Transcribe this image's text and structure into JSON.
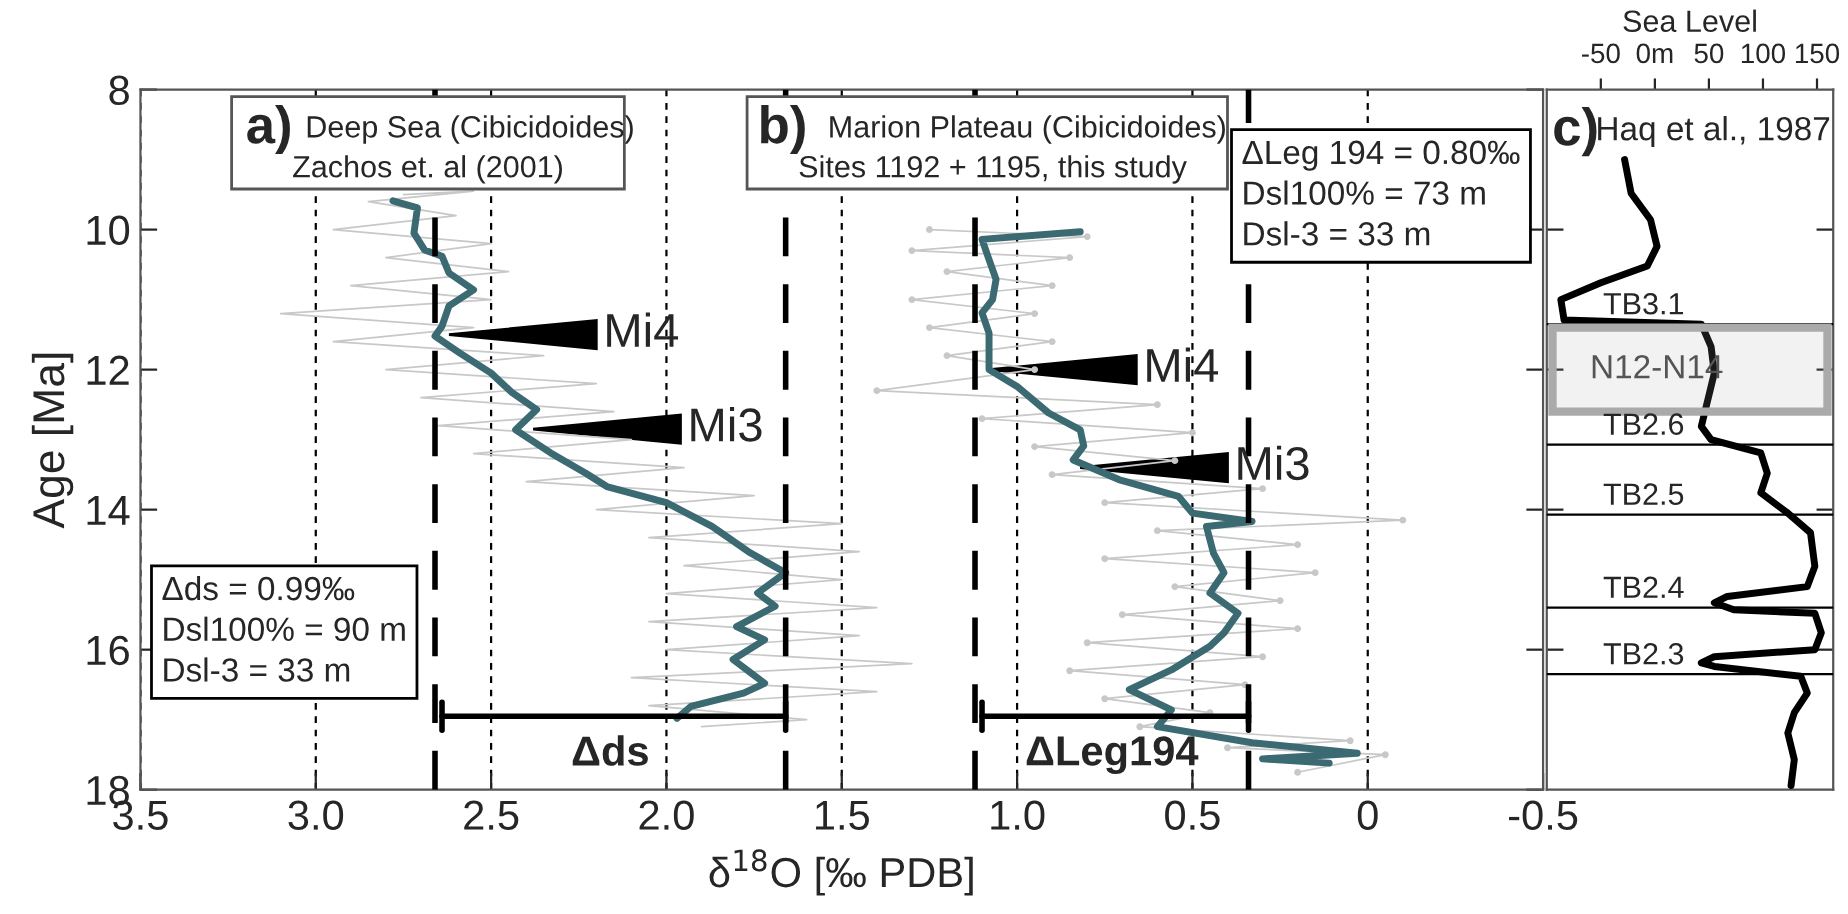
{
  "chart_data": [
    {
      "type": "line",
      "xlabel": "δ$^{18}$O [‰ PDB]",
      "ylabel": "Age [Ma]",
      "xlim": [
        3.5,
        -0.5
      ],
      "xticks": [
        3.5,
        {
          "value": 3.0,
          "label": "3.0"
        },
        2.5,
        {
          "value": 2.0,
          "label": "2.0"
        },
        1.5,
        {
          "value": 1.0,
          "label": "1.0"
        },
        0.5,
        0,
        -0.5
      ],
      "ylim": [
        18,
        8
      ],
      "yticks": [
        8,
        10,
        12,
        14,
        16,
        18
      ],
      "grid": "x",
      "series": [
        {
          "color": "#c8c8c8",
          "x": [
            2.75,
            2.55,
            2.85,
            2.6,
            2.95,
            2.5,
            2.8,
            2.45,
            2.9,
            2.5,
            3.1,
            2.55,
            2.95,
            2.35,
            2.8,
            2.2,
            2.7,
            2.15,
            2.65,
            2.1,
            2.55,
            1.95,
            2.4,
            1.75,
            2.2,
            1.5,
            2.05,
            1.45,
            1.95,
            1.5,
            2.0,
            1.4,
            2.05,
            1.45,
            2.0,
            1.3,
            2.1,
            1.4,
            2.05,
            1.6,
            1.9
          ],
          "values": [
            9.5,
            9.45,
            9.6,
            9.8,
            10.0,
            10.2,
            10.4,
            10.6,
            10.8,
            11.0,
            11.2,
            11.4,
            11.6,
            11.8,
            12.0,
            12.2,
            12.4,
            12.6,
            12.8,
            13.0,
            13.2,
            13.4,
            13.6,
            13.8,
            14.0,
            14.2,
            14.4,
            14.6,
            14.8,
            15.0,
            15.2,
            15.4,
            15.6,
            15.8,
            16.0,
            16.2,
            16.4,
            16.6,
            16.8,
            17.0,
            17.1
          ]
        },
        {
          "color": "#3b6a72",
          "x": [
            2.78,
            2.71,
            2.72,
            2.69,
            2.64,
            2.62,
            2.55,
            2.62,
            2.64,
            2.66,
            2.59,
            2.5,
            2.44,
            2.37,
            2.43,
            2.33,
            2.23,
            2.17,
            2.0,
            1.87,
            1.76,
            1.66,
            1.74,
            1.69,
            1.8,
            1.72,
            1.81,
            1.72,
            1.78,
            1.93,
            1.97
          ],
          "values": [
            9.59,
            9.69,
            10.05,
            10.29,
            10.38,
            10.62,
            10.86,
            11.09,
            11.38,
            11.52,
            11.76,
            12.05,
            12.33,
            12.57,
            12.86,
            13.19,
            13.48,
            13.67,
            13.9,
            14.24,
            14.62,
            14.9,
            15.19,
            15.38,
            15.67,
            15.86,
            16.14,
            16.48,
            16.62,
            16.81,
            16.98
          ]
        },
        {
          "color": "#c8c8c8",
          "marker": "circle",
          "x": [
            1.25,
            0.8,
            1.3,
            0.85,
            1.2,
            0.9,
            1.3,
            0.95,
            1.25,
            0.9,
            1.2,
            0.95,
            1.4,
            0.6,
            1.1,
            0.5,
            0.95,
            0.55,
            0.9,
            0.3,
            0.75,
            -0.1,
            0.6,
            0.2,
            0.75,
            0.15,
            0.55,
            0.25,
            0.7,
            0.2,
            0.8,
            0.3,
            0.85,
            0.35,
            0.75,
            0.45,
            0.65,
            0.05,
            0.4,
            -0.05,
            0.2
          ],
          "values": [
            10.0,
            10.1,
            10.3,
            10.4,
            10.6,
            10.8,
            11.0,
            11.2,
            11.4,
            11.6,
            11.8,
            12.0,
            12.3,
            12.5,
            12.7,
            12.9,
            13.1,
            13.3,
            13.5,
            13.7,
            13.9,
            14.15,
            14.3,
            14.5,
            14.7,
            14.9,
            15.1,
            15.3,
            15.5,
            15.7,
            15.9,
            16.1,
            16.3,
            16.5,
            16.7,
            16.9,
            17.1,
            17.3,
            17.4,
            17.5,
            17.75
          ]
        },
        {
          "color": "#3b6a72",
          "x": [
            0.82,
            1.1,
            1.08,
            1.06,
            1.07,
            1.1,
            1.08,
            1.08,
            1.08,
            1.0,
            0.91,
            0.82,
            0.81,
            0.84,
            0.71,
            0.54,
            0.5,
            0.33,
            0.46,
            0.44,
            0.41,
            0.45,
            0.37,
            0.41,
            0.45,
            0.56,
            0.68,
            0.56,
            0.6,
            0.33,
            0.03,
            0.3,
            0.11
          ],
          "values": [
            10.03,
            10.14,
            10.43,
            10.71,
            11.0,
            11.19,
            11.48,
            11.76,
            12.0,
            12.24,
            12.62,
            12.86,
            13.09,
            13.29,
            13.57,
            13.81,
            14.05,
            14.17,
            14.24,
            14.62,
            14.9,
            15.19,
            15.48,
            15.76,
            15.95,
            16.29,
            16.57,
            16.86,
            17.1,
            17.33,
            17.48,
            17.56,
            17.62
          ]
        }
      ],
      "ref_lines": [
        {
          "axis": "x",
          "value": 2.66,
          "color": "#000000",
          "line_style": "dashed"
        },
        {
          "axis": "x",
          "value": 1.66,
          "color": "#000000",
          "line_style": "dashed"
        },
        {
          "axis": "x",
          "value": 1.12,
          "color": "#000000",
          "line_style": "dashed"
        },
        {
          "axis": "x",
          "value": 0.34,
          "color": "#000000",
          "line_style": "dashed"
        }
      ],
      "annotations": [
        "a)",
        "Deep Sea (Cibicidoides)",
        "Zachos et. al (2001)",
        "b)",
        "Marion Plateau (Cibicidoides)",
        "Sites 1192 + 1195, this study",
        "Δds = 0.99‰\nDsl100% = 90 m\nDsl-3 = 33 m",
        "ΔLeg 194 = 0.80‰\nDsl100% = 73 m\nDsl-3 = 33 m",
        "Δds",
        "ΔLeg194",
        {
          "text": "Mi4",
          "x": 2.62,
          "y": 11.5
        },
        {
          "text": "Mi3",
          "x": 2.38,
          "y": 12.85
        },
        {
          "text": "Mi4",
          "x": 1.08,
          "y": 12.0
        },
        {
          "text": "Mi3",
          "x": 0.82,
          "y": 13.4
        }
      ]
    },
    {
      "type": "line",
      "xlabel": "Sea Level",
      "xlim": [
        -100,
        165
      ],
      "xticks": [
        -50,
        {
          "value": 0,
          "label": "0m"
        },
        50,
        100,
        150
      ],
      "ylim": [
        18,
        8
      ],
      "yticks": [
        {
          "value": 10,
          "label": null
        },
        {
          "value": 12,
          "label": null
        },
        {
          "value": 14,
          "label": null
        },
        {
          "value": 16,
          "label": null
        }
      ],
      "tick_labels": "x",
      "series": [
        {
          "color": "#000000",
          "x": [
            -28,
            -22,
            -4,
            2,
            -7,
            -50,
            -87,
            -84,
            43,
            52,
            55,
            49,
            43,
            52,
            98,
            104,
            98,
            123,
            144,
            148,
            141,
            67,
            55,
            73,
            148,
            154,
            148,
            55,
            43,
            55,
            135,
            141,
            129,
            123,
            129,
            126
          ],
          "values": [
            9.0,
            9.48,
            9.86,
            10.24,
            10.52,
            10.76,
            11.0,
            11.29,
            11.35,
            11.67,
            12.05,
            12.43,
            12.81,
            13.0,
            13.19,
            13.48,
            13.76,
            14.05,
            14.33,
            14.81,
            15.1,
            15.24,
            15.33,
            15.43,
            15.48,
            15.76,
            16.0,
            16.1,
            16.19,
            16.24,
            16.38,
            16.62,
            16.9,
            17.19,
            17.57,
            17.94
          ]
        }
      ],
      "ref_lines": [
        {
          "axis": "y",
          "value": 11.35,
          "label": "TB3.1"
        },
        {
          "axis": "y",
          "value": 13.07,
          "label": "TB2.6"
        },
        {
          "axis": "y",
          "value": 14.07,
          "label": "TB2.5"
        },
        {
          "axis": "y",
          "value": 15.4,
          "label": "TB2.4"
        },
        {
          "axis": "y",
          "value": 16.35,
          "label": "TB2.3"
        }
      ],
      "bands": [
        {
          "axis": "y",
          "from": 11.4,
          "to": 12.6,
          "label": "N12-N14",
          "color": "#aaaaaa"
        }
      ],
      "annotations": [
        "c)",
        "Haq et al., 1987"
      ]
    }
  ]
}
